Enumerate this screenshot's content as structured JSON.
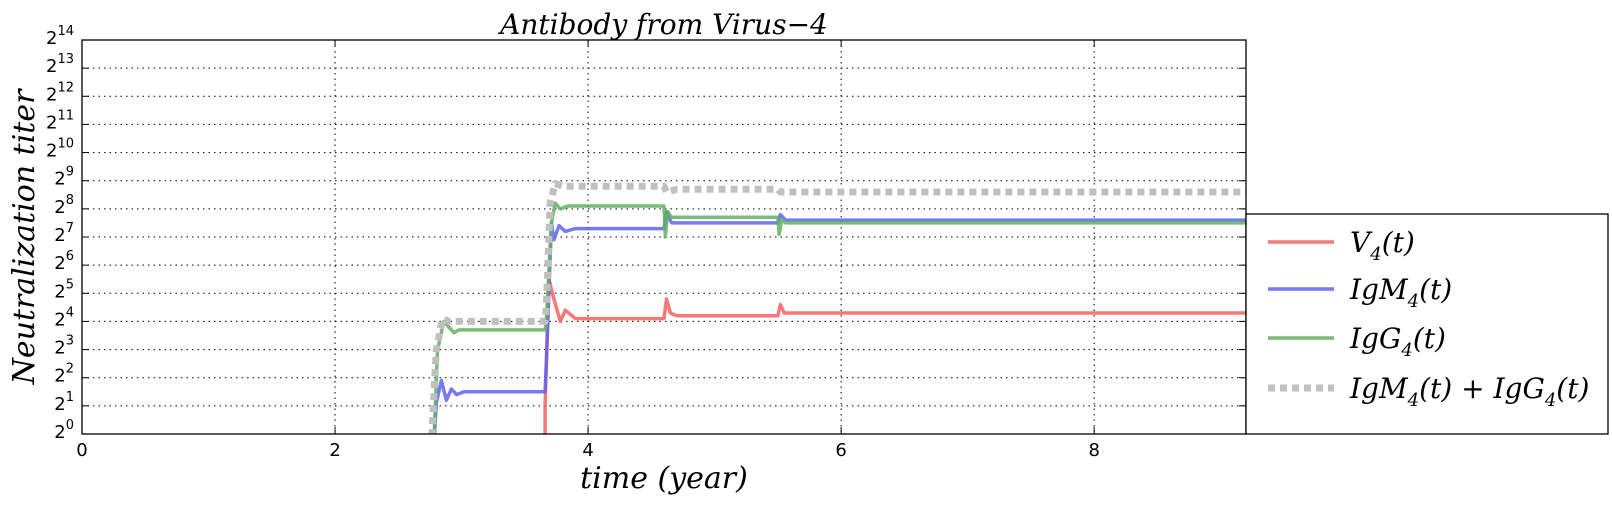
{
  "chart_data": {
    "type": "line",
    "title": "Antibody from Virus−4",
    "xlabel": "time (year)",
    "ylabel": "Neutralization  titer",
    "xlim": [
      0,
      9.2
    ],
    "ylim": [
      0,
      14
    ],
    "y_scale": "log2",
    "grid": true,
    "legend_position": "right, outside plot",
    "x_ticks": [
      "0",
      "2",
      "4",
      "6",
      "8"
    ],
    "y_ticks": [
      {
        "base": "2",
        "exp": "0"
      },
      {
        "base": "2",
        "exp": "1"
      },
      {
        "base": "2",
        "exp": "2"
      },
      {
        "base": "2",
        "exp": "3"
      },
      {
        "base": "2",
        "exp": "4"
      },
      {
        "base": "2",
        "exp": "5"
      },
      {
        "base": "2",
        "exp": "6"
      },
      {
        "base": "2",
        "exp": "7"
      },
      {
        "base": "2",
        "exp": "8"
      },
      {
        "base": "2",
        "exp": "9"
      },
      {
        "base": "2",
        "exp": "10"
      },
      {
        "base": "2",
        "exp": "11"
      },
      {
        "base": "2",
        "exp": "12"
      },
      {
        "base": "2",
        "exp": "13"
      },
      {
        "base": "2",
        "exp": "14"
      }
    ],
    "series": [
      {
        "name": "V4(t)",
        "label": {
          "main": "V",
          "sub": "4",
          "rest": "(t)"
        },
        "color": "#f46060",
        "dash": "solid",
        "x": [
          3.66,
          3.66,
          3.69,
          3.73,
          3.78,
          3.82,
          3.9,
          4.6,
          4.62,
          4.65,
          4.7,
          5.5,
          5.52,
          5.55,
          5.6,
          9.2
        ],
        "y": [
          -0.5,
          1.0,
          5.5,
          4.8,
          4.0,
          4.4,
          4.1,
          4.1,
          4.8,
          4.3,
          4.2,
          4.2,
          4.6,
          4.3,
          4.3,
          4.3
        ]
      },
      {
        "name": "IgM4(t)",
        "label": {
          "main": "IgM",
          "sub": "4",
          "rest": "(t)"
        },
        "color": "#6262f0",
        "dash": "solid",
        "x": [
          2.78,
          2.8,
          2.84,
          2.88,
          2.92,
          2.96,
          3.02,
          3.66,
          3.67,
          3.71,
          3.73,
          3.77,
          3.82,
          3.9,
          4.6,
          4.62,
          4.66,
          4.7,
          5.5,
          5.52,
          5.56,
          5.6,
          9.2
        ],
        "y": [
          -0.5,
          1.1,
          1.9,
          1.2,
          1.6,
          1.4,
          1.5,
          1.5,
          2.5,
          7.5,
          6.9,
          7.4,
          7.2,
          7.3,
          7.3,
          7.9,
          7.5,
          7.5,
          7.5,
          7.8,
          7.6,
          7.6,
          7.6
        ]
      },
      {
        "name": "IgG4(t)",
        "label": {
          "main": "IgG",
          "sub": "4",
          "rest": "(t)"
        },
        "color": "#62b062",
        "dash": "solid",
        "x": [
          2.78,
          2.81,
          2.86,
          2.9,
          2.94,
          2.98,
          3.04,
          3.66,
          3.67,
          3.71,
          3.74,
          3.78,
          3.84,
          3.9,
          4.6,
          4.61,
          4.63,
          4.66,
          4.7,
          5.5,
          5.51,
          5.53,
          5.56,
          5.6,
          9.2
        ],
        "y": [
          -0.5,
          3.0,
          4.0,
          3.8,
          3.6,
          3.7,
          3.7,
          3.7,
          4.0,
          7.5,
          8.2,
          8.0,
          8.1,
          8.1,
          8.1,
          7.0,
          7.9,
          7.7,
          7.7,
          7.7,
          7.1,
          7.6,
          7.5,
          7.5,
          7.5
        ]
      },
      {
        "name": "IgM4(t)+IgG4(t)",
        "label": {
          "main": "IgM",
          "sub": "4",
          "rest": "(t) + ",
          "main2": "IgG",
          "sub2": "4",
          "rest2": "(t)"
        },
        "color": "#c0c0c0",
        "dash": "dotted",
        "x": [
          2.76,
          2.8,
          2.85,
          2.9,
          3.66,
          3.67,
          3.7,
          3.74,
          3.8,
          3.9,
          4.6,
          4.62,
          4.7,
          5.5,
          5.52,
          5.6,
          9.2
        ],
        "y": [
          -0.5,
          3.0,
          4.1,
          4.0,
          4.0,
          4.5,
          8.2,
          8.9,
          8.8,
          8.8,
          8.8,
          8.6,
          8.7,
          8.7,
          8.6,
          8.6,
          8.6
        ]
      }
    ]
  }
}
